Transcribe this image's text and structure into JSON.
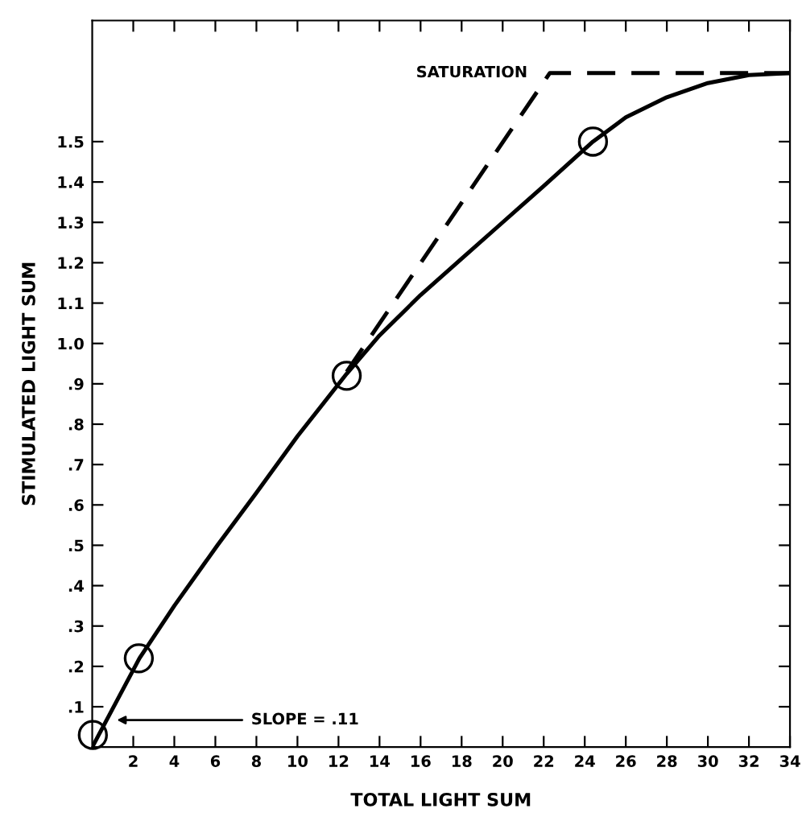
{
  "chart_data": {
    "type": "line",
    "xlabel": "TOTAL LIGHT SUM",
    "ylabel": "STIMULATED LIGHT SUM",
    "xlim": [
      0,
      34
    ],
    "ylim": [
      0,
      1.8
    ],
    "xticks": [
      2,
      4,
      6,
      8,
      10,
      12,
      14,
      16,
      18,
      20,
      22,
      24,
      26,
      28,
      30,
      32,
      34
    ],
    "yticks": [
      {
        "value": 0.1,
        "label": ".1"
      },
      {
        "value": 0.2,
        "label": ".2"
      },
      {
        "value": 0.3,
        "label": ".3"
      },
      {
        "value": 0.4,
        "label": ".4"
      },
      {
        "value": 0.5,
        "label": ".5"
      },
      {
        "value": 0.6,
        "label": ".6"
      },
      {
        "value": 0.7,
        "label": ".7"
      },
      {
        "value": 0.8,
        "label": ".8"
      },
      {
        "value": 0.9,
        "label": ".9"
      },
      {
        "value": 1.0,
        "label": "1.0"
      },
      {
        "value": 1.1,
        "label": "1.1"
      },
      {
        "value": 1.2,
        "label": "1.2"
      },
      {
        "value": 1.3,
        "label": "1.3"
      },
      {
        "value": 1.4,
        "label": "1.4"
      },
      {
        "value": 1.5,
        "label": "1.5"
      }
    ],
    "grid": false,
    "legend": false,
    "series": [
      {
        "color": "#000000",
        "line_style": "solid",
        "marker": "none",
        "x": [
          0,
          2.3,
          4,
          6.1,
          8,
          10,
          12.4,
          14,
          16,
          18,
          20,
          22,
          24.4,
          26,
          28,
          30,
          32,
          34
        ],
        "values": [
          0,
          0.22,
          0.35,
          0.5,
          0.63,
          0.77,
          0.925,
          1.02,
          1.12,
          1.21,
          1.3,
          1.39,
          1.5,
          1.56,
          1.61,
          1.645,
          1.665,
          1.67
        ]
      },
      {
        "color": "#000000",
        "line_style": "dashed",
        "marker": "none",
        "x": [
          12.4,
          22.3,
          34
        ],
        "values": [
          0.93,
          1.67,
          1.67
        ]
      },
      {
        "type": "scatter",
        "color": "#000000",
        "marker": "circle",
        "x": [
          0.03,
          2.27,
          12.4,
          24.4
        ],
        "values": [
          0.03,
          0.22,
          0.92,
          1.5
        ]
      }
    ],
    "annotations": [
      {
        "text": "SATURATION",
        "x": 22.3,
        "y": 1.67
      },
      {
        "text": "SLOPE = .11",
        "x": 1.2,
        "y": 0.067
      }
    ]
  }
}
